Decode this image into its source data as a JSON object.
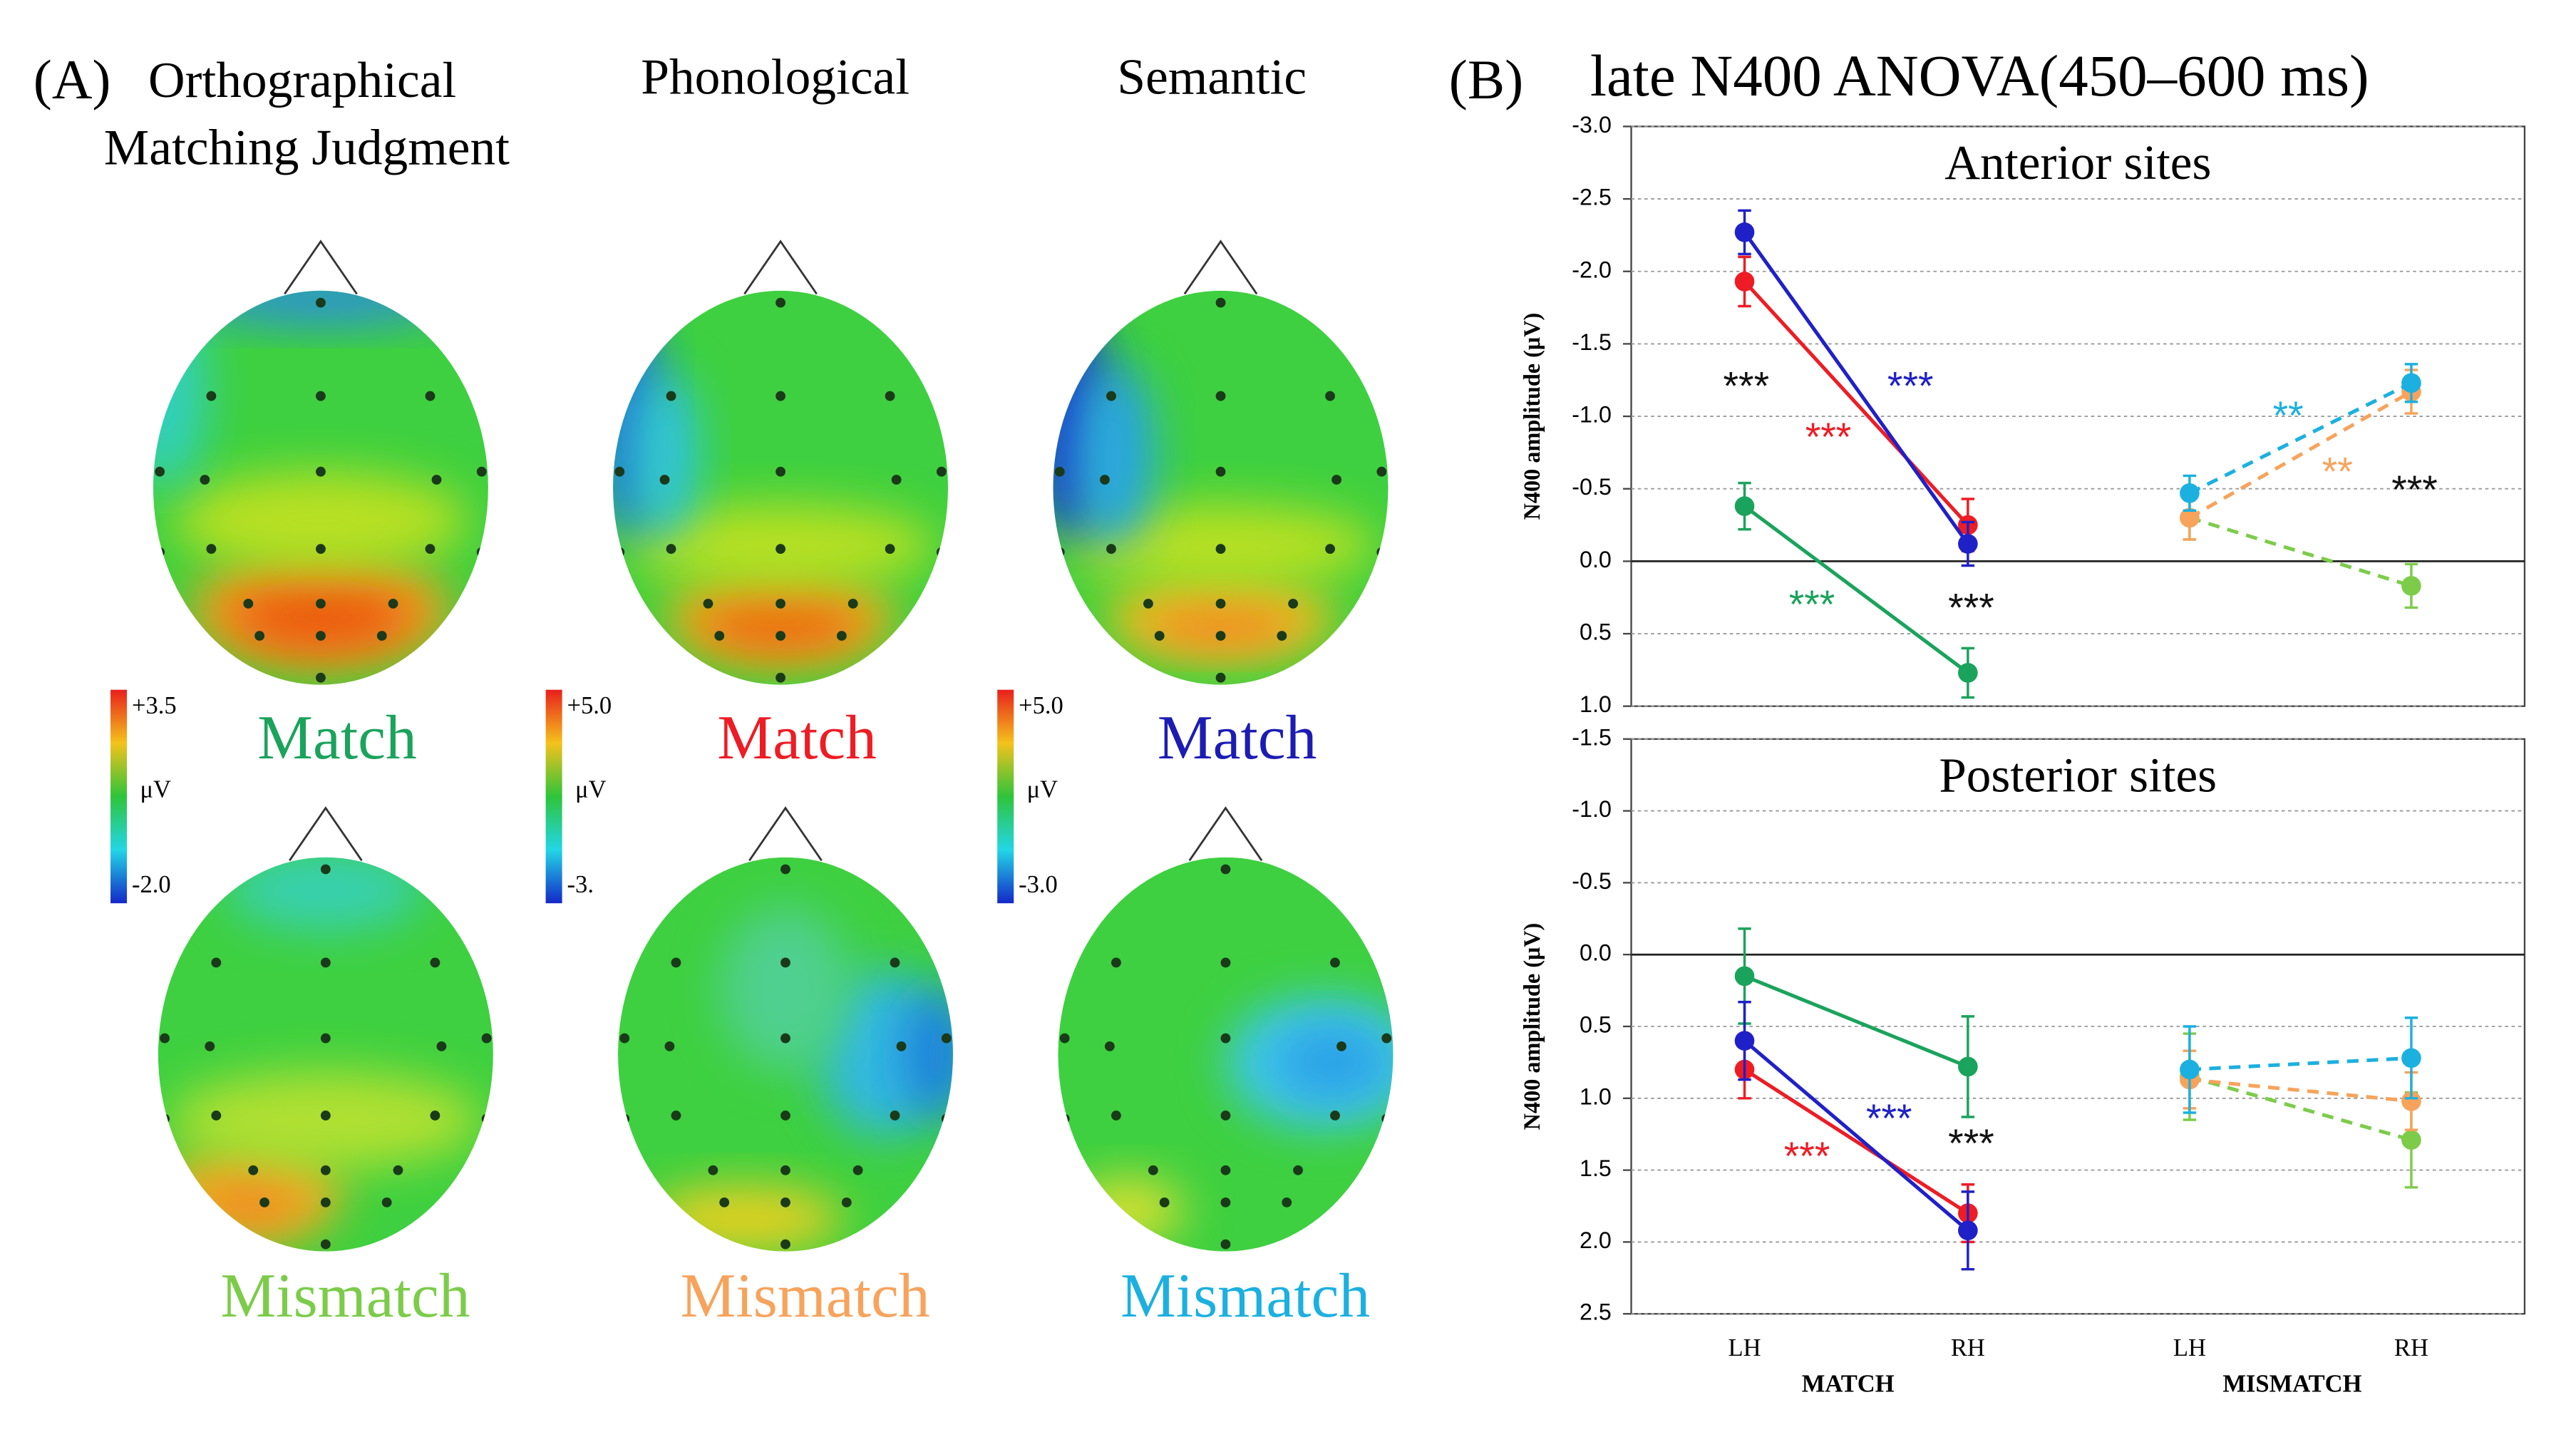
{
  "figure": {
    "panel_a_label": "(A)",
    "panel_b_label": "(B)",
    "panel_b_title": "late N400 ANOVA(450–600 ms)"
  },
  "panel_a": {
    "columns": [
      {
        "title_lines": [
          "Orthographical",
          "Matching Judgment"
        ],
        "scale": {
          "max": "+3.5",
          "unit": "μV",
          "min": "-2.0"
        },
        "match": "Match",
        "match_color": "#1aa35c",
        "mismatch": "Mismatch",
        "mismatch_color": "#7ccc4a"
      },
      {
        "title_lines": [
          "Phonological"
        ],
        "scale": {
          "max": "+5.0",
          "unit": "μV",
          "min": "-3."
        },
        "match": "Match",
        "match_color": "#ee1c24",
        "mismatch": "Mismatch",
        "mismatch_color": "#f7a35c"
      },
      {
        "title_lines": [
          "Semantic"
        ],
        "scale": {
          "max": "+5.0",
          "unit": "μV",
          "min": "-3.0"
        },
        "match": "Match",
        "match_color": "#1c1cb4",
        "mismatch": "Mismatch",
        "mismatch_color": "#1cb0e0"
      }
    ]
  },
  "chart_data": [
    {
      "type": "line",
      "title": "Anterior sites",
      "ylabel": "N400 amplitude  (μV)",
      "ylim": [
        1.0,
        -3.0
      ],
      "yticks": [
        {
          "value": -3,
          "label": "-3.0"
        },
        -2.5,
        {
          "value": -2,
          "label": "-2.0"
        },
        -1.5,
        {
          "value": -1,
          "label": "-1.0"
        },
        -0.5,
        {
          "value": 0,
          "label": "0.0"
        },
        0.5,
        {
          "value": 1,
          "label": "1.0"
        }
      ],
      "grid": true,
      "series": [
        {
          "color": "#1aa35c",
          "dashed": false,
          "values": [
            -0.38,
            0.77,
            null,
            null
          ],
          "errors": [
            0.16,
            0.17,
            null,
            null
          ]
        },
        {
          "color": "#ee1c24",
          "dashed": false,
          "values": [
            -1.93,
            -0.25,
            null,
            null
          ],
          "errors": [
            0.17,
            0.18,
            null,
            null
          ]
        },
        {
          "color": "#2020c8",
          "dashed": false,
          "values": [
            -2.27,
            -0.12,
            null,
            null
          ],
          "errors": [
            0.15,
            0.15,
            null,
            null
          ]
        },
        {
          "color": "#7ccc4a",
          "dashed": true,
          "values": [
            null,
            null,
            -0.3,
            0.17
          ],
          "errors": [
            null,
            null,
            0.15,
            0.15
          ]
        },
        {
          "color": "#f7a35c",
          "dashed": true,
          "values": [
            null,
            null,
            -0.3,
            -1.17
          ],
          "errors": [
            null,
            null,
            0.15,
            0.15
          ]
        },
        {
          "color": "#1cb0e0",
          "dashed": true,
          "values": [
            null,
            null,
            -0.47,
            -1.23
          ],
          "errors": [
            null,
            null,
            0.12,
            0.13
          ]
        }
      ],
      "annotations": [
        {
          "text": "***",
          "color": "#111111"
        },
        {
          "text": "***",
          "color": "#2020c8"
        },
        {
          "text": "***",
          "color": "#ee1c24"
        },
        {
          "text": "***",
          "color": "#1aa35c"
        },
        {
          "text": "***",
          "color": "#111111"
        },
        {
          "text": "**",
          "color": "#1cb0e0"
        },
        {
          "text": "**",
          "color": "#f7a35c"
        },
        {
          "text": "***",
          "color": "#111111"
        }
      ]
    },
    {
      "type": "line",
      "title": "Posterior sites",
      "ylabel": "N400 amplitude  (μV)",
      "ylim": [
        2.5,
        -1.5
      ],
      "yticks": [
        -1.5,
        {
          "value": -1,
          "label": "-1.0"
        },
        -0.5,
        {
          "value": 0,
          "label": "0.0"
        },
        0.5,
        {
          "value": 1,
          "label": "1.0"
        },
        1.5,
        {
          "value": 2,
          "label": "2.0"
        },
        2.5
      ],
      "grid": true,
      "categories": [
        "LH",
        "RH",
        "LH",
        "RH"
      ],
      "groups": [
        "MATCH",
        "MISMATCH"
      ],
      "series": [
        {
          "color": "#1aa35c",
          "dashed": false,
          "values": [
            0.15,
            0.78,
            null,
            null
          ],
          "errors": [
            0.33,
            0.35,
            null,
            null
          ]
        },
        {
          "color": "#ee1c24",
          "dashed": false,
          "values": [
            0.8,
            1.8,
            null,
            null
          ],
          "errors": [
            0.2,
            0.2,
            null,
            null
          ]
        },
        {
          "color": "#2020c8",
          "dashed": false,
          "values": [
            0.6,
            1.92,
            null,
            null
          ],
          "errors": [
            0.27,
            0.27,
            null,
            null
          ]
        },
        {
          "color": "#7ccc4a",
          "dashed": true,
          "values": [
            null,
            null,
            0.85,
            1.29
          ],
          "errors": [
            null,
            null,
            0.3,
            0.33
          ]
        },
        {
          "color": "#f7a35c",
          "dashed": true,
          "values": [
            null,
            null,
            0.87,
            1.02
          ],
          "errors": [
            null,
            null,
            0.2,
            0.2
          ]
        },
        {
          "color": "#1cb0e0",
          "dashed": true,
          "values": [
            null,
            null,
            0.8,
            0.72
          ],
          "errors": [
            null,
            null,
            0.3,
            0.28
          ]
        }
      ],
      "annotations": [
        {
          "text": "***",
          "color": "#ee1c24"
        },
        {
          "text": "***",
          "color": "#2020c8"
        },
        {
          "text": "***",
          "color": "#111111"
        }
      ]
    }
  ]
}
